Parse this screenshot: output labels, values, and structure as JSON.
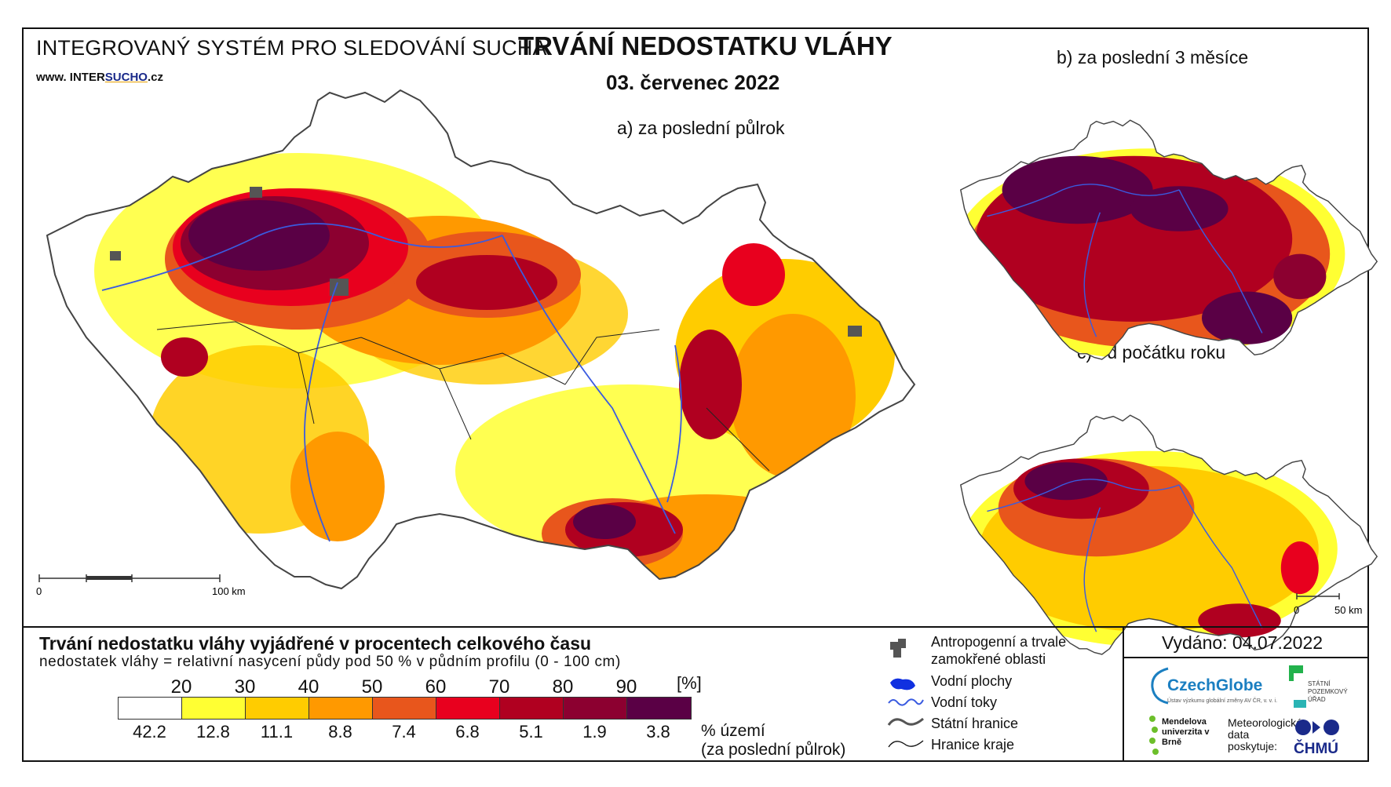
{
  "header": {
    "system_title": "INTEGROVANÝ SYSTÉM PRO SLEDOVÁNÍ SUCHA",
    "website_prefix": "www. INTER",
    "website_highlight": "SUCHO",
    "website_suffix": ".cz",
    "title": "TRVÁNÍ NEDOSTATKU VLÁHY",
    "date": "03. červenec 2022"
  },
  "panels": {
    "a_label": "a) za poslední půlrok",
    "b_label": "b) za poslední 3 měsíce",
    "c_label": "c) od počátku roku"
  },
  "scale_a": {
    "start": "0",
    "end": "100 km"
  },
  "scale_c": {
    "start": "0",
    "end": "50 km"
  },
  "legend": {
    "title": "Trvání nedostatku vláhy vyjádřené v procentech celkového času",
    "subtitle": "nedostatek vláhy = relativní nasycení půdy pod 50 % v půdním profilu (0 - 100 cm)",
    "unit": "[%]",
    "thresholds": [
      "20",
      "30",
      "40",
      "50",
      "60",
      "70",
      "80",
      "90"
    ],
    "colors": [
      "#ffffff",
      "#ffff33",
      "#ffcc00",
      "#ff9900",
      "#e8561c",
      "#e8001e",
      "#b00020",
      "#8c0030",
      "#5a0045"
    ],
    "percentages": [
      "42.2",
      "12.8",
      "11.1",
      "8.8",
      "7.4",
      "6.8",
      "5.1",
      "1.9",
      "3.8"
    ],
    "pct_note_1": "% území",
    "pct_note_2": "(za poslední půlrok)"
  },
  "overlays": {
    "anthropogenic_1": "Antropogenní a trvale",
    "anthropogenic_2": "zamokřené oblasti",
    "water_bodies": "Vodní plochy",
    "rivers": "Vodní toky",
    "state_border": "Státní hranice",
    "region_border": "Hranice kraje"
  },
  "footer": {
    "issued": "Vydáno: 04.07.2022",
    "czechglobe": "CzechGlobe",
    "czechglobe_sub": "Ústav výzkumu globální změny AV ČR, v. v. i.",
    "spu": "STÁTNÍ POZEMKOVÝ ÚŘAD",
    "mendel": "Mendelova univerzita v Brně",
    "meteo": "Meteorologická data poskytuje:",
    "chmu": "ČHMÚ"
  }
}
